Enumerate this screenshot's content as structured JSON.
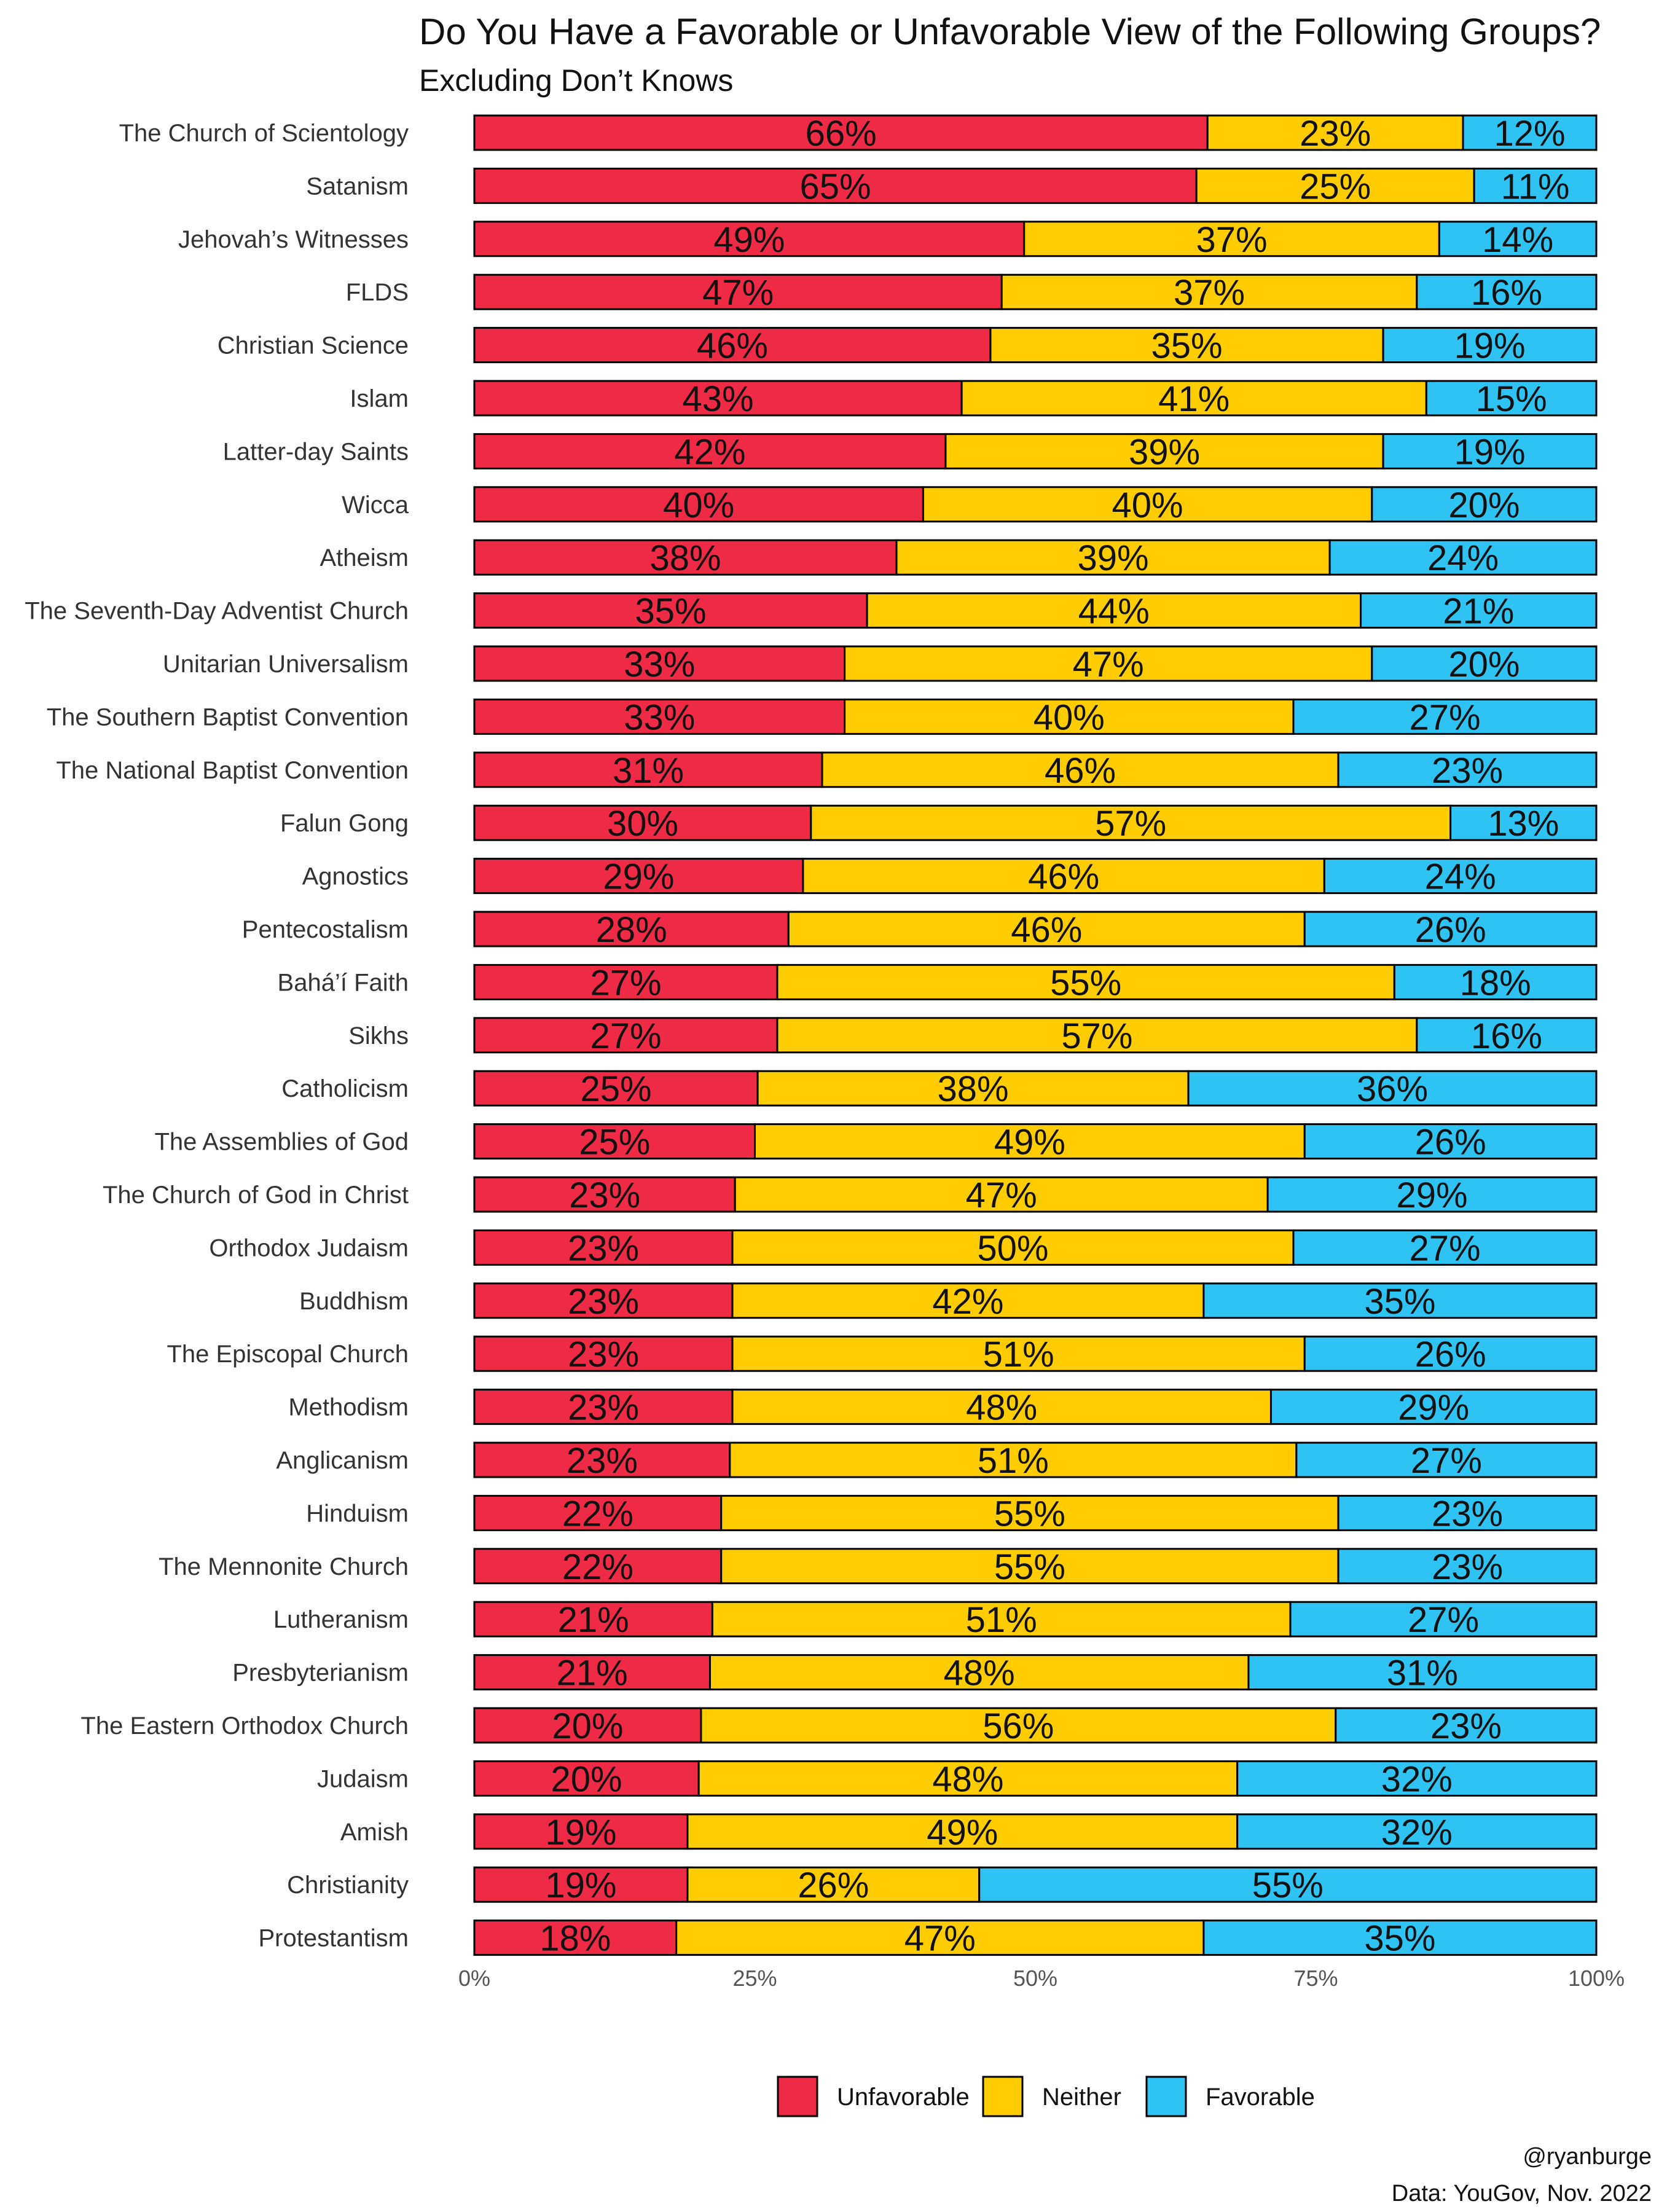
{
  "chart_data": {
    "type": "bar",
    "orientation": "horizontal",
    "stacked": true,
    "title": "Do You Have a Favorable or Unfavorable View of the Following Groups?",
    "subtitle": "Excluding Don’t Knows",
    "categories": [
      "The Church of Scientology",
      "Satanism",
      "Jehovah’s Witnesses",
      "FLDS",
      "Christian Science",
      "Islam",
      "Latter-day Saints",
      "Wicca",
      "Atheism",
      "The Seventh-Day Adventist Church",
      "Unitarian Universalism",
      "The Southern Baptist Convention",
      "The National Baptist Convention",
      "Falun Gong",
      "Agnostics",
      "Pentecostalism",
      "Bahá’í Faith",
      "Sikhs",
      "Catholicism",
      "The Assemblies of God",
      "The Church of God in Christ",
      "Orthodox Judaism",
      "Buddhism",
      "The Episcopal Church",
      "Methodism",
      "Anglicanism",
      "Hinduism",
      "The Mennonite Church",
      "Lutheranism",
      "Presbyterianism",
      "The Eastern Orthodox Church",
      "Judaism",
      "Amish",
      "Christianity",
      "Protestantism"
    ],
    "series": [
      {
        "name": "Unfavorable",
        "color": "#EE2A45",
        "values": [
          66,
          65,
          49,
          47,
          46,
          43,
          42,
          40,
          38,
          35,
          33,
          33,
          31,
          30,
          29,
          28,
          27,
          27,
          25,
          25,
          23,
          23,
          23,
          23,
          23,
          23,
          22,
          22,
          21,
          21,
          20,
          20,
          19,
          19,
          18
        ]
      },
      {
        "name": "Neither",
        "color": "#FFCC00",
        "values": [
          23,
          25,
          37,
          37,
          35,
          41,
          39,
          40,
          39,
          44,
          47,
          40,
          46,
          57,
          46,
          46,
          55,
          57,
          38,
          49,
          47,
          50,
          42,
          51,
          48,
          51,
          55,
          55,
          51,
          48,
          56,
          48,
          49,
          26,
          47
        ]
      },
      {
        "name": "Favorable",
        "color": "#2EC3F2",
        "values": [
          12,
          11,
          14,
          16,
          19,
          15,
          19,
          20,
          24,
          21,
          20,
          27,
          23,
          13,
          24,
          26,
          18,
          16,
          36,
          26,
          29,
          27,
          35,
          26,
          29,
          27,
          23,
          23,
          27,
          31,
          23,
          32,
          32,
          55,
          35
        ]
      }
    ],
    "xlim": [
      0,
      100
    ],
    "x_ticks": [
      "0%",
      "25%",
      "50%",
      "75%",
      "100%"
    ],
    "grid": false,
    "legend_position": "bottom"
  },
  "credit": {
    "handle": "@ryanburge",
    "source": "Data: YouGov, Nov. 2022"
  }
}
